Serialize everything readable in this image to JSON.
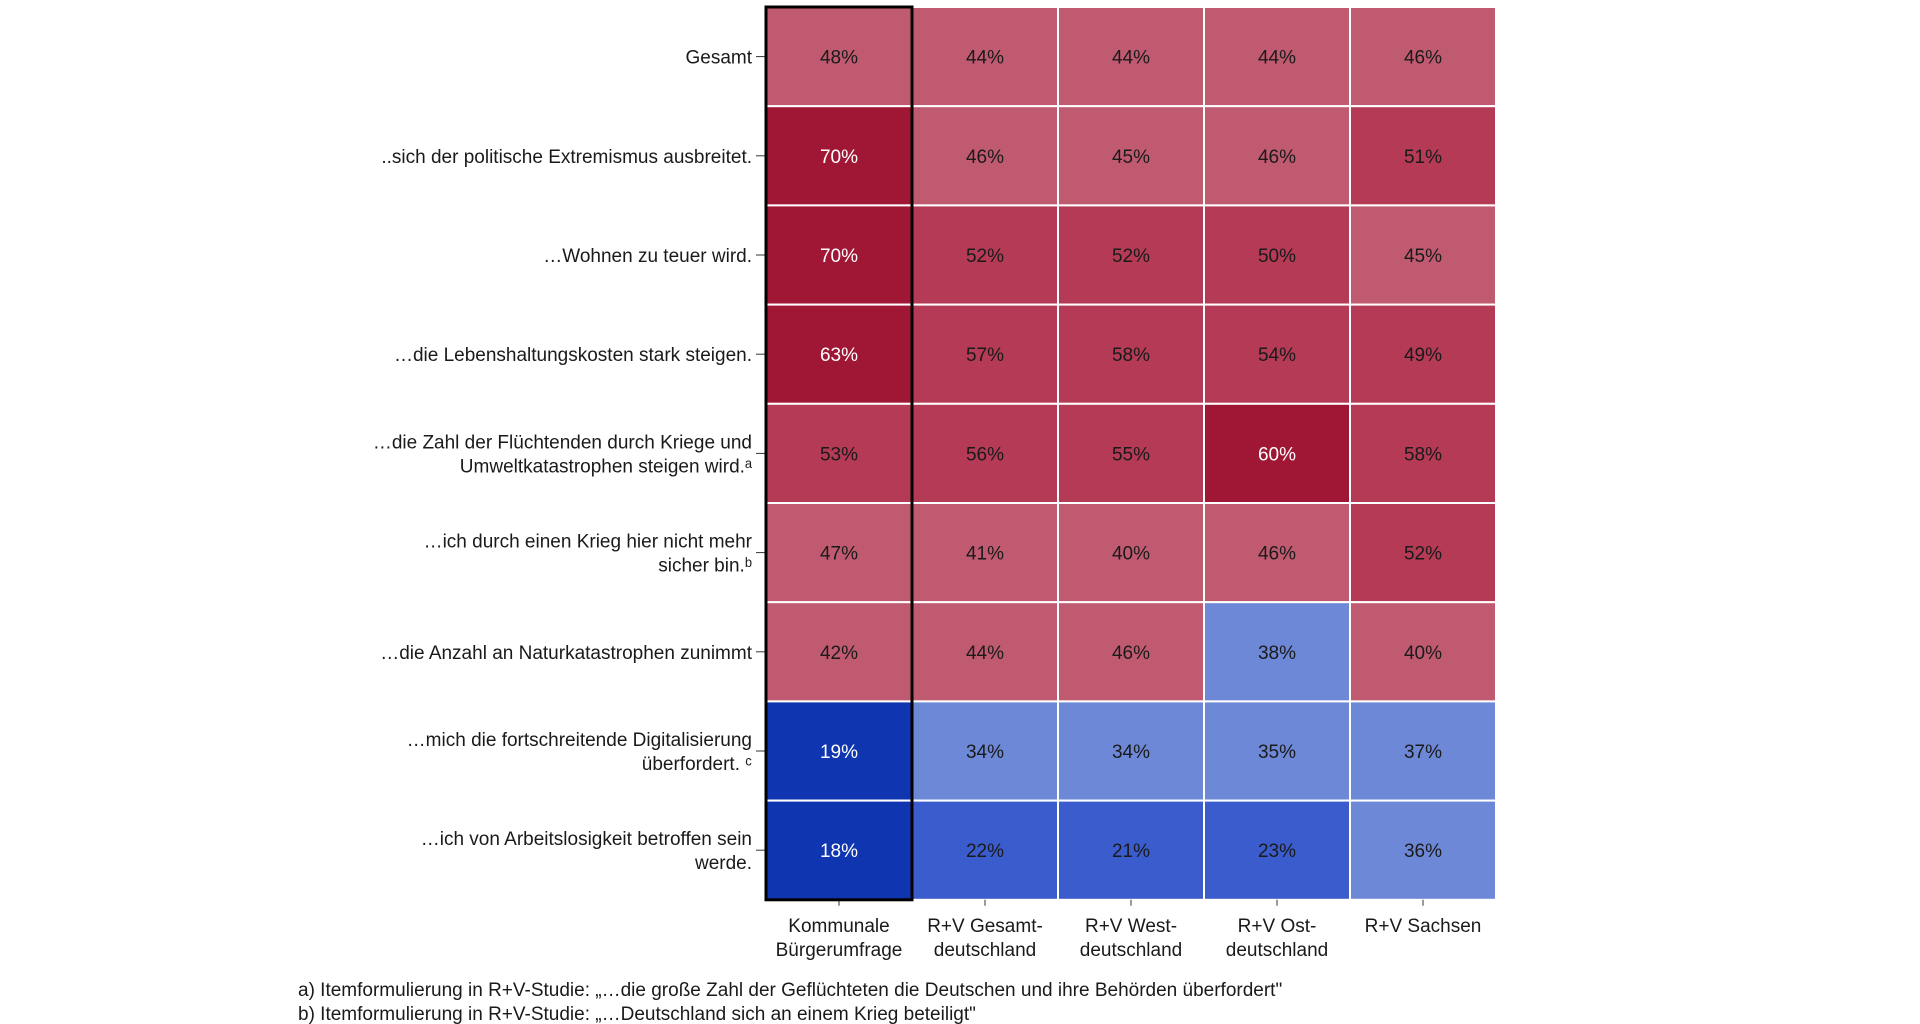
{
  "chart_data": {
    "type": "heatmap",
    "title": "",
    "columns": [
      "Kommunale Bürgerumfrage",
      "R+V Gesamt-deutschland",
      "R+V West-deutschland",
      "R+V Ost-deutschland",
      "R+V Sachsen"
    ],
    "column_label_lines": [
      [
        "Kommunale",
        "Bürgerumfrage"
      ],
      [
        "R+V Gesamt-",
        "deutschland"
      ],
      [
        "R+V West-",
        "deutschland"
      ],
      [
        "R+V Ost-",
        "deutschland"
      ],
      [
        "R+V Sachsen"
      ]
    ],
    "rows": [
      "Gesamt",
      "..sich der politische Extremismus ausbreitet.",
      "…Wohnen zu teuer wird.",
      "…die Lebenshaltungskosten stark steigen.",
      "…die Zahl der Flüchtenden durch Kriege und Umweltkatastrophen steigen wird.ᵃ",
      "…ich durch einen Krieg hier nicht mehr sicher bin.ᵇ",
      "…die Anzahl an Naturkatastrophen zunimmt",
      "…mich die fortschreitende Digitalisierung überfordert. ᶜ",
      "…ich von Arbeitslosigkeit betroffen sein werde."
    ],
    "row_label_lines": [
      [
        "Gesamt"
      ],
      [
        "..sich der politische Extremismus ausbreitet."
      ],
      [
        "…Wohnen zu teuer wird."
      ],
      [
        "…die Lebenshaltungskosten stark steigen."
      ],
      [
        "…die Zahl der Flüchtenden durch Kriege und",
        "Umweltkatastrophen steigen wird.ᵃ"
      ],
      [
        "…ich durch einen Krieg hier nicht mehr",
        "sicher bin.ᵇ"
      ],
      [
        "…die Anzahl an Naturkatastrophen zunimmt"
      ],
      [
        "…mich die fortschreitende Digitalisierung",
        "überfordert. ᶜ"
      ],
      [
        "…ich von Arbeitslosigkeit betroffen sein",
        "werde."
      ]
    ],
    "values": [
      [
        48,
        44,
        44,
        44,
        46
      ],
      [
        70,
        46,
        45,
        46,
        51
      ],
      [
        70,
        52,
        52,
        50,
        45
      ],
      [
        63,
        57,
        58,
        54,
        49
      ],
      [
        53,
        56,
        55,
        60,
        58
      ],
      [
        47,
        41,
        40,
        46,
        52
      ],
      [
        42,
        44,
        46,
        38,
        40
      ],
      [
        19,
        34,
        34,
        35,
        37
      ],
      [
        18,
        22,
        21,
        23,
        36
      ]
    ],
    "value_format": "%",
    "highlight_column": "Kommunale Bürgerumfrage",
    "colors": {
      "red_dark": "#a01736",
      "red_mid": "#b53a55",
      "red_light": "#c05a70",
      "blue_light": "#6e88d8",
      "blue_mid": "#3b5ccc",
      "blue_dark": "#0f35b0",
      "grid": "#ffffff",
      "highlight_border": "#000000"
    }
  },
  "footnotes": [
    "a) Itemformulierung in R+V-Studie: „…die große Zahl der Geflüchteten die Deutschen und ihre Behörden überfordert\"",
    "b) Itemformulierung in R+V-Studie: „…Deutschland sich an einem Krieg beteiligt\""
  ]
}
